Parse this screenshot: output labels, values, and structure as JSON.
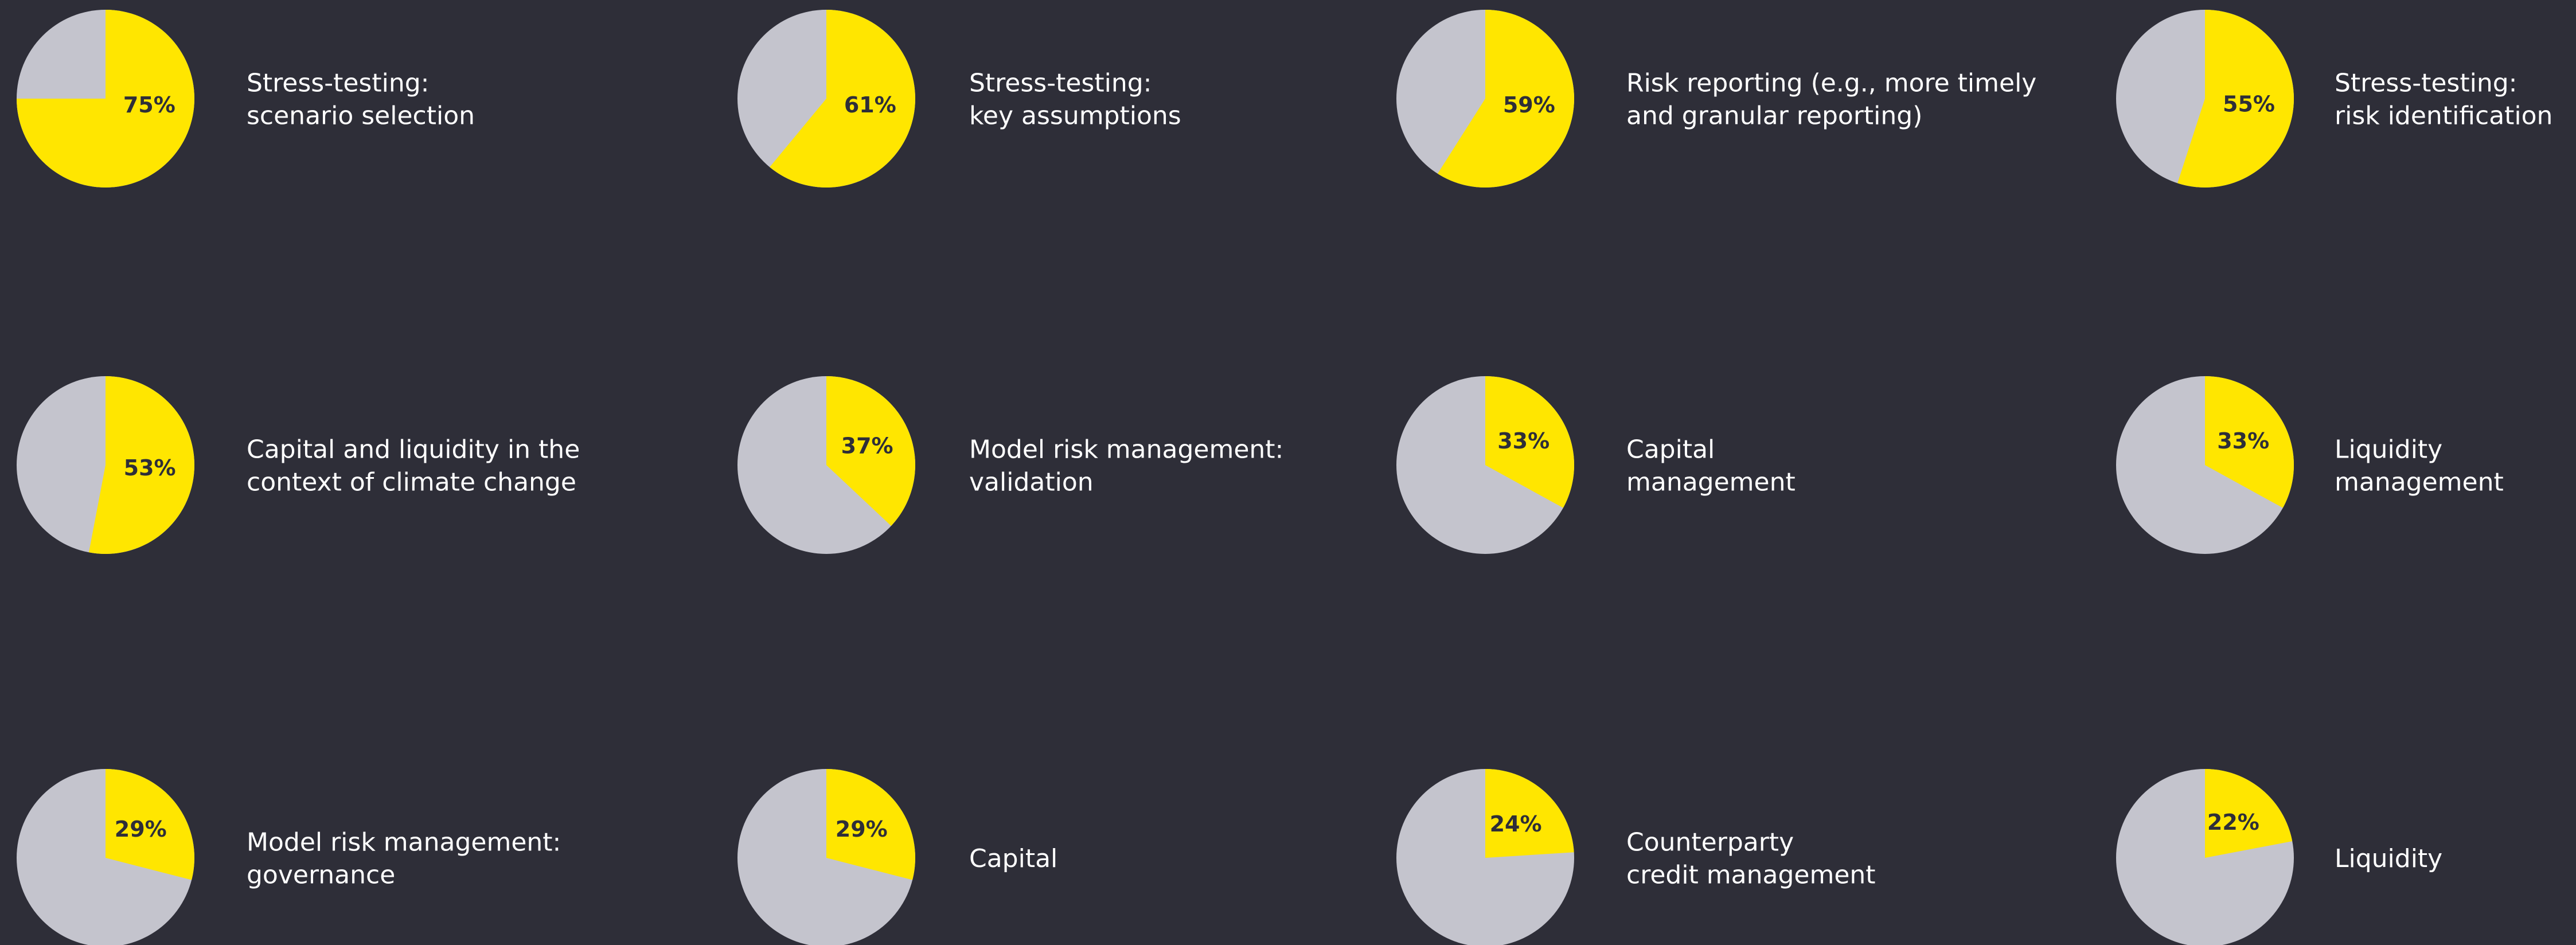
{
  "chart_data": [
    {
      "type": "pie",
      "title": [
        "Stress-testing:",
        "scenario selection"
      ],
      "values": [
        75
      ],
      "value_labels": [
        "75%"
      ],
      "color": "#ffe600"
    },
    {
      "type": "pie",
      "title": [
        "Stress-testing:",
        "key assumptions"
      ],
      "values": [
        61
      ],
      "value_labels": [
        "61%"
      ],
      "color": "#ffe600"
    },
    {
      "type": "pie",
      "title": [
        "Risk reporting (e.g., more timely",
        "and granular reporting)"
      ],
      "values": [
        59
      ],
      "value_labels": [
        "59%"
      ],
      "color": "#ffe600"
    },
    {
      "type": "pie",
      "title": [
        "Stress-testing:",
        "risk identification"
      ],
      "values": [
        55
      ],
      "value_labels": [
        "55%"
      ],
      "color": "#ffe600"
    },
    {
      "type": "pie",
      "title": [
        "Capital and liquidity in the",
        "context of climate change"
      ],
      "values": [
        53
      ],
      "value_labels": [
        "53%"
      ],
      "color": "#ffe600"
    },
    {
      "type": "pie",
      "title": [
        "Model risk management:",
        "validation"
      ],
      "values": [
        37
      ],
      "value_labels": [
        "37%"
      ],
      "color": "#ffe600"
    },
    {
      "type": "pie",
      "title": [
        "Capital",
        "management"
      ],
      "values": [
        33
      ],
      "value_labels": [
        "33%"
      ],
      "color": "#ffe600"
    },
    {
      "type": "pie",
      "title": [
        "Liquidity",
        "management"
      ],
      "values": [
        33
      ],
      "value_labels": [
        "33%"
      ],
      "color": "#ffe600"
    },
    {
      "type": "pie",
      "title": [
        "Model risk management:",
        "governance"
      ],
      "values": [
        29
      ],
      "value_labels": [
        "29%"
      ],
      "color": "#ffe600"
    },
    {
      "type": "pie",
      "title": [
        "Capital"
      ],
      "values": [
        29
      ],
      "value_labels": [
        "29%"
      ],
      "color": "#ffe600"
    },
    {
      "type": "pie",
      "title": [
        "Counterparty",
        "credit management"
      ],
      "values": [
        24
      ],
      "value_labels": [
        "24%"
      ],
      "color": "#ffe600"
    },
    {
      "type": "pie",
      "title": [
        "Liquidity"
      ],
      "values": [
        22
      ],
      "value_labels": [
        "22%"
      ],
      "color": "#ffe600"
    }
  ]
}
